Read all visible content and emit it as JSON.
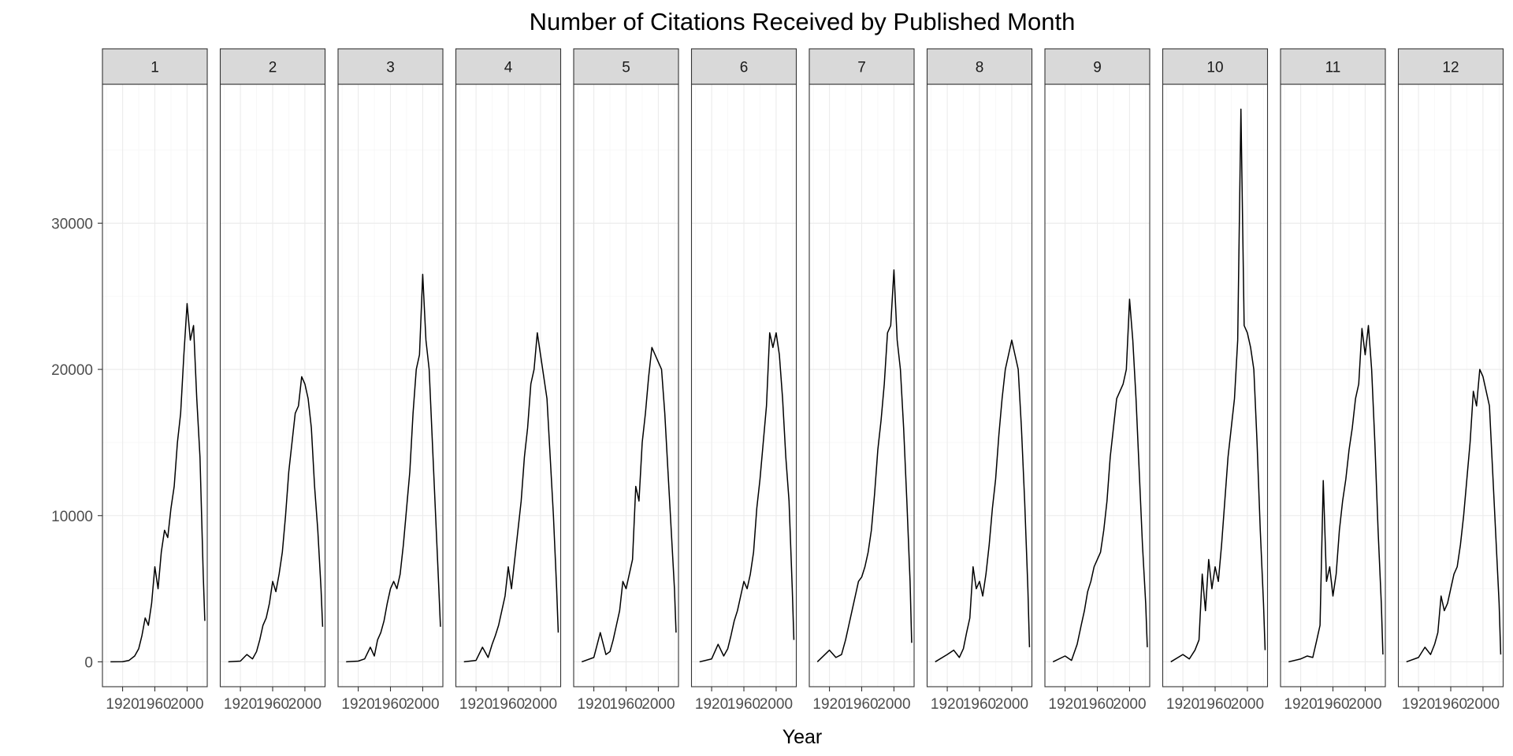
{
  "chart_data": {
    "type": "line",
    "title": "Number of Citations Received by Published Month",
    "xlabel": "Year",
    "ylabel": "",
    "xlim": [
      1895,
      2025
    ],
    "ylim": [
      -1700,
      39500
    ],
    "x_ticks": [
      1920,
      1960,
      2000
    ],
    "x_tick_labels": [
      "1920",
      "1960",
      "2000"
    ],
    "y_ticks": [
      0,
      10000,
      20000,
      30000
    ],
    "y_tick_labels": [
      "0",
      "10000",
      "20000",
      "30000"
    ],
    "grid": true,
    "facets": [
      "1",
      "2",
      "3",
      "4",
      "5",
      "6",
      "7",
      "8",
      "9",
      "10",
      "11",
      "12"
    ],
    "series": [
      {
        "facet": "1",
        "x": [
          1905,
          1920,
          1928,
          1935,
          1940,
          1944,
          1948,
          1952,
          1956,
          1960,
          1964,
          1968,
          1972,
          1976,
          1980,
          1984,
          1988,
          1992,
          1996,
          2000,
          2004,
          2008,
          2012,
          2016,
          2020,
          2022
        ],
        "values": [
          0,
          10,
          100,
          400,
          900,
          1800,
          3000,
          2500,
          4000,
          6500,
          5000,
          7500,
          9000,
          8500,
          10500,
          12000,
          15000,
          17000,
          21000,
          24500,
          22000,
          23000,
          18000,
          14000,
          6000,
          2800
        ]
      },
      {
        "facet": "2",
        "x": [
          1905,
          1920,
          1928,
          1935,
          1940,
          1944,
          1948,
          1952,
          1956,
          1960,
          1964,
          1968,
          1972,
          1976,
          1980,
          1984,
          1988,
          1992,
          1996,
          2000,
          2004,
          2008,
          2012,
          2016,
          2020,
          2022
        ],
        "values": [
          0,
          50,
          500,
          200,
          700,
          1500,
          2500,
          3000,
          4000,
          5500,
          4800,
          6000,
          7500,
          10000,
          13000,
          15000,
          17000,
          17500,
          19500,
          19000,
          18000,
          16000,
          12000,
          9000,
          5000,
          2400
        ]
      },
      {
        "facet": "3",
        "x": [
          1905,
          1920,
          1928,
          1935,
          1940,
          1944,
          1948,
          1952,
          1956,
          1960,
          1964,
          1968,
          1972,
          1976,
          1980,
          1984,
          1988,
          1992,
          1996,
          2000,
          2004,
          2008,
          2012,
          2016,
          2020,
          2022
        ],
        "values": [
          0,
          50,
          200,
          1000,
          400,
          1500,
          2000,
          2800,
          4000,
          5000,
          5500,
          5000,
          6000,
          8000,
          10500,
          13000,
          17000,
          20000,
          21000,
          26500,
          22000,
          20000,
          15000,
          10000,
          5000,
          2400
        ]
      },
      {
        "facet": "4",
        "x": [
          1905,
          1920,
          1928,
          1935,
          1940,
          1944,
          1948,
          1952,
          1956,
          1960,
          1964,
          1968,
          1972,
          1976,
          1980,
          1984,
          1988,
          1992,
          1996,
          2000,
          2004,
          2008,
          2012,
          2016,
          2020,
          2022
        ],
        "values": [
          0,
          100,
          1000,
          300,
          1200,
          1800,
          2500,
          3500,
          4500,
          6500,
          5000,
          7000,
          9000,
          11000,
          14000,
          16000,
          19000,
          20000,
          22500,
          21000,
          19500,
          18000,
          14000,
          10000,
          5000,
          2000
        ]
      },
      {
        "facet": "5",
        "x": [
          1905,
          1920,
          1928,
          1935,
          1940,
          1944,
          1948,
          1952,
          1956,
          1960,
          1964,
          1968,
          1972,
          1976,
          1980,
          1984,
          1988,
          1992,
          1996,
          2000,
          2004,
          2008,
          2012,
          2016,
          2020,
          2022
        ],
        "values": [
          0,
          300,
          2000,
          500,
          700,
          1500,
          2500,
          3500,
          5500,
          5000,
          6000,
          7000,
          12000,
          11000,
          15000,
          17000,
          19500,
          21500,
          21000,
          20500,
          20000,
          17000,
          13000,
          9000,
          5000,
          2000
        ]
      },
      {
        "facet": "6",
        "x": [
          1905,
          1920,
          1928,
          1935,
          1940,
          1944,
          1948,
          1952,
          1956,
          1960,
          1964,
          1968,
          1972,
          1976,
          1980,
          1984,
          1988,
          1992,
          1996,
          2000,
          2004,
          2008,
          2012,
          2016,
          2020,
          2022
        ],
        "values": [
          0,
          200,
          1200,
          400,
          900,
          1800,
          2800,
          3500,
          4500,
          5500,
          5000,
          6000,
          7500,
          10500,
          12500,
          15000,
          17500,
          22500,
          21500,
          22500,
          21000,
          18000,
          14000,
          11000,
          5000,
          1500
        ]
      },
      {
        "facet": "7",
        "x": [
          1905,
          1920,
          1928,
          1935,
          1940,
          1944,
          1948,
          1952,
          1956,
          1960,
          1964,
          1968,
          1972,
          1976,
          1980,
          1984,
          1988,
          1992,
          1996,
          2000,
          2004,
          2008,
          2012,
          2016,
          2020,
          2022
        ],
        "values": [
          0,
          800,
          300,
          500,
          1500,
          2500,
          3500,
          4500,
          5500,
          5800,
          6500,
          7500,
          9000,
          11500,
          14500,
          16500,
          19000,
          22500,
          23000,
          26800,
          22000,
          20000,
          16000,
          11000,
          5500,
          1300
        ]
      },
      {
        "facet": "8",
        "x": [
          1905,
          1920,
          1928,
          1935,
          1940,
          1944,
          1948,
          1952,
          1956,
          1960,
          1964,
          1968,
          1972,
          1976,
          1980,
          1984,
          1988,
          1992,
          1996,
          2000,
          2004,
          2008,
          2012,
          2016,
          2020,
          2022
        ],
        "values": [
          0,
          500,
          800,
          300,
          900,
          2000,
          3000,
          6500,
          5000,
          5500,
          4500,
          6000,
          8000,
          10500,
          12500,
          15500,
          18000,
          20000,
          21000,
          22000,
          21000,
          20000,
          16000,
          11000,
          5000,
          1000
        ]
      },
      {
        "facet": "9",
        "x": [
          1905,
          1920,
          1928,
          1935,
          1940,
          1944,
          1948,
          1952,
          1956,
          1960,
          1964,
          1968,
          1972,
          1976,
          1980,
          1984,
          1988,
          1992,
          1996,
          2000,
          2004,
          2008,
          2012,
          2016,
          2020,
          2022
        ],
        "values": [
          0,
          400,
          100,
          1200,
          2500,
          3500,
          4800,
          5500,
          6500,
          7000,
          7500,
          9000,
          11000,
          14000,
          16000,
          18000,
          18500,
          19000,
          20000,
          24800,
          22000,
          18000,
          13000,
          8000,
          4000,
          1000
        ]
      },
      {
        "facet": "10",
        "x": [
          1905,
          1920,
          1928,
          1935,
          1940,
          1944,
          1948,
          1952,
          1956,
          1960,
          1964,
          1968,
          1972,
          1976,
          1980,
          1984,
          1988,
          1992,
          1996,
          2000,
          2004,
          2008,
          2012,
          2016,
          2020,
          2022
        ],
        "values": [
          0,
          500,
          200,
          800,
          1500,
          6000,
          3500,
          7000,
          5000,
          6500,
          5500,
          8000,
          11000,
          14000,
          16000,
          18000,
          22000,
          37800,
          23000,
          22500,
          21500,
          20000,
          15000,
          9000,
          4000,
          800
        ]
      },
      {
        "facet": "11",
        "x": [
          1905,
          1920,
          1928,
          1935,
          1940,
          1944,
          1948,
          1952,
          1956,
          1960,
          1964,
          1968,
          1972,
          1976,
          1980,
          1984,
          1988,
          1992,
          1996,
          2000,
          2004,
          2008,
          2012,
          2016,
          2020,
          2022
        ],
        "values": [
          0,
          200,
          400,
          300,
          1500,
          2500,
          12400,
          5500,
          6500,
          4500,
          6000,
          9000,
          11000,
          12500,
          14500,
          16000,
          18000,
          19000,
          22800,
          21000,
          23000,
          20000,
          15000,
          9000,
          4000,
          500
        ]
      },
      {
        "facet": "12",
        "x": [
          1905,
          1920,
          1928,
          1935,
          1940,
          1944,
          1948,
          1952,
          1956,
          1960,
          1964,
          1968,
          1972,
          1976,
          1980,
          1984,
          1988,
          1992,
          1996,
          2000,
          2004,
          2008,
          2012,
          2016,
          2020,
          2022
        ],
        "values": [
          0,
          300,
          1000,
          500,
          1200,
          2000,
          4500,
          3500,
          4000,
          5000,
          6000,
          6500,
          8000,
          10000,
          12500,
          15000,
          18500,
          17500,
          20000,
          19500,
          18500,
          17500,
          13000,
          8500,
          4000,
          500
        ]
      }
    ]
  }
}
